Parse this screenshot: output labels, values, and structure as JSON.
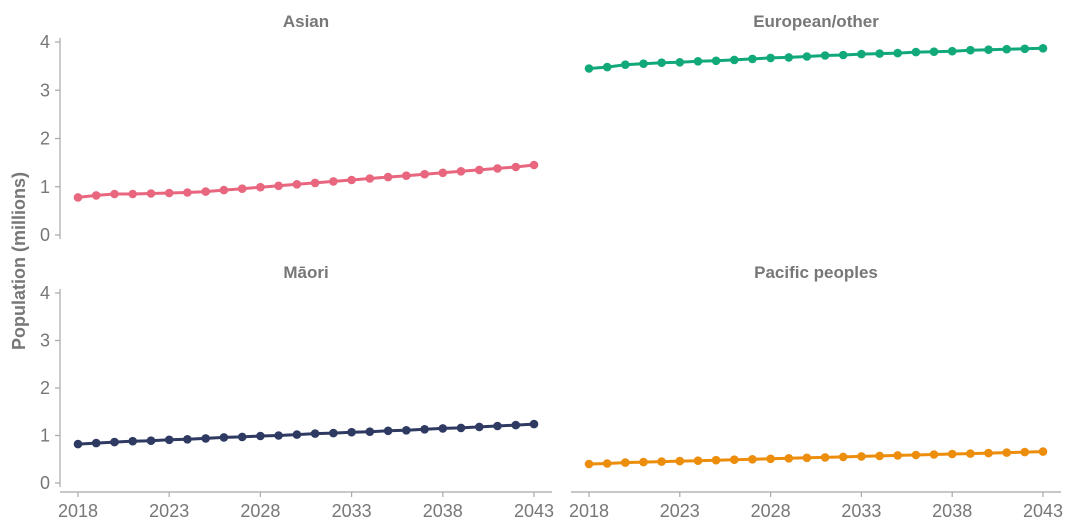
{
  "chart_data": {
    "type": "line",
    "ylabel": "Population (millions)",
    "xlabel": "",
    "x": [
      2018,
      2019,
      2020,
      2021,
      2022,
      2023,
      2024,
      2025,
      2026,
      2027,
      2028,
      2029,
      2030,
      2031,
      2032,
      2033,
      2034,
      2035,
      2036,
      2037,
      2038,
      2039,
      2040,
      2041,
      2042,
      2043
    ],
    "x_ticks": [
      2018,
      2023,
      2028,
      2033,
      2038,
      2043
    ],
    "ylim": [
      0,
      4
    ],
    "y_ticks": [
      0,
      1,
      2,
      3,
      4
    ],
    "grid": false,
    "legend": "none",
    "facets": [
      {
        "name": "Asian",
        "color": "#e8677e",
        "values": [
          0.78,
          0.82,
          0.85,
          0.85,
          0.86,
          0.87,
          0.88,
          0.9,
          0.93,
          0.96,
          0.99,
          1.02,
          1.05,
          1.08,
          1.11,
          1.14,
          1.17,
          1.2,
          1.23,
          1.26,
          1.29,
          1.32,
          1.35,
          1.38,
          1.41,
          1.45
        ]
      },
      {
        "name": "European/other",
        "color": "#12a97a",
        "values": [
          3.45,
          3.48,
          3.53,
          3.55,
          3.57,
          3.58,
          3.6,
          3.61,
          3.63,
          3.65,
          3.67,
          3.68,
          3.7,
          3.72,
          3.73,
          3.75,
          3.76,
          3.77,
          3.79,
          3.8,
          3.81,
          3.83,
          3.84,
          3.85,
          3.86,
          3.87
        ]
      },
      {
        "name": "Māori",
        "color": "#2e3a62",
        "values": [
          0.82,
          0.84,
          0.86,
          0.88,
          0.89,
          0.91,
          0.92,
          0.94,
          0.96,
          0.97,
          0.99,
          1.0,
          1.02,
          1.04,
          1.05,
          1.07,
          1.08,
          1.1,
          1.11,
          1.13,
          1.15,
          1.16,
          1.18,
          1.2,
          1.22,
          1.24
        ]
      },
      {
        "name": "Pacific peoples",
        "color": "#ec8d0c",
        "values": [
          0.4,
          0.41,
          0.43,
          0.44,
          0.45,
          0.46,
          0.47,
          0.48,
          0.49,
          0.5,
          0.51,
          0.52,
          0.53,
          0.54,
          0.55,
          0.56,
          0.57,
          0.58,
          0.59,
          0.6,
          0.61,
          0.62,
          0.63,
          0.64,
          0.65,
          0.66
        ]
      }
    ]
  }
}
